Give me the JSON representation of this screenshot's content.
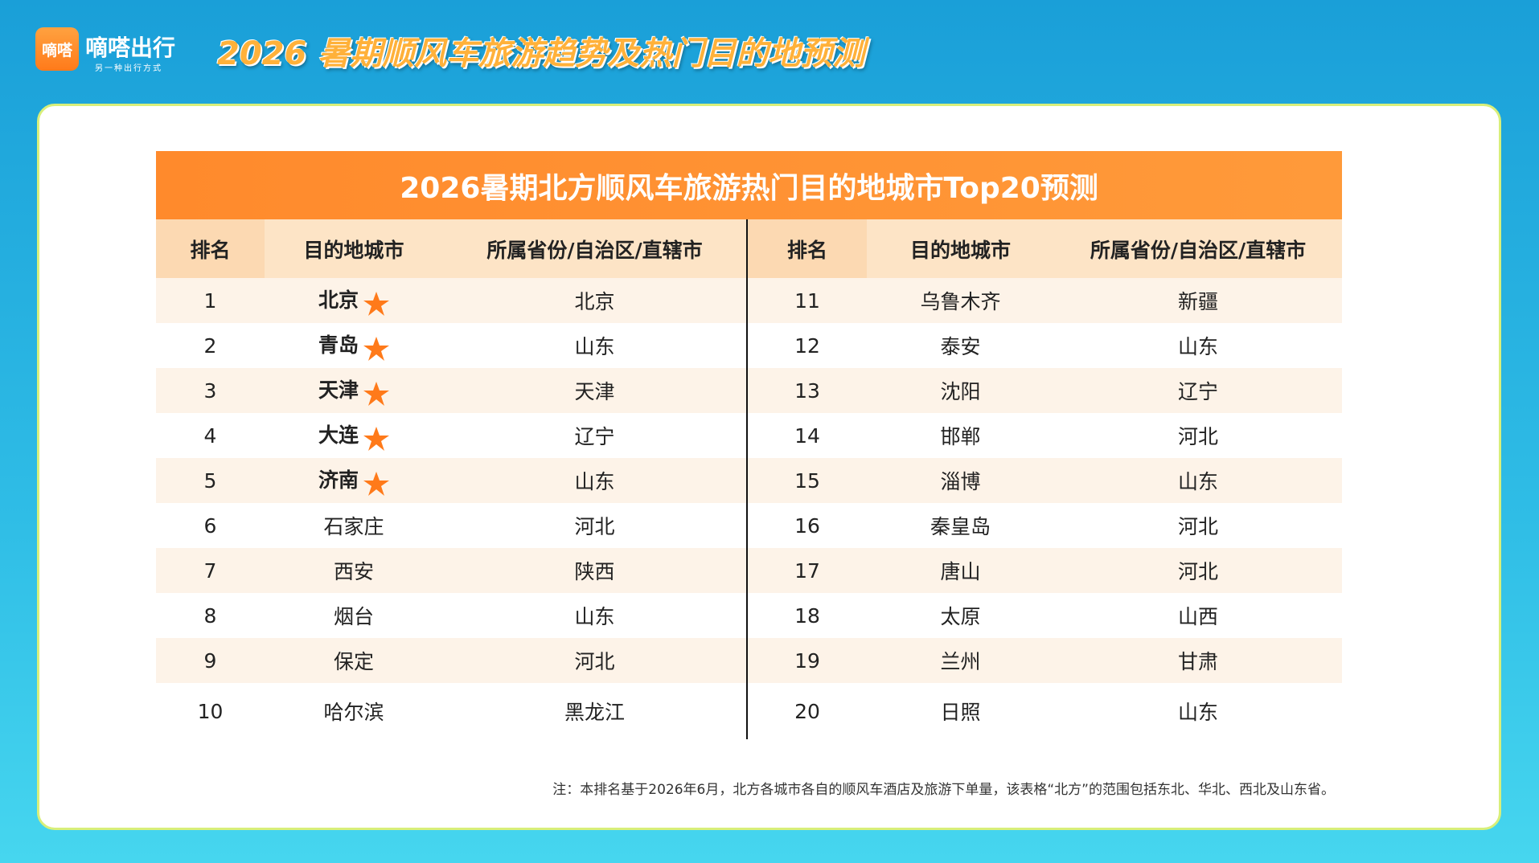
{
  "header": {
    "logo": "嘀嗒",
    "brand": "嘀嗒出行",
    "slogan": "另一种出行方式",
    "title": "2026 暑期顺风车旅游趋势及热门目的地预测"
  },
  "table": {
    "title": "2026暑期北方顺风车旅游热门目的地城市Top20预测",
    "headers": [
      "排名",
      "目的地城市",
      "所属省份/自治区/直辖市",
      "排名",
      "目的地城市",
      "所属省份/自治区/直辖市"
    ],
    "rows": [
      [
        1,
        "北京",
        "北京",
        11,
        "乌鲁木齐",
        "新疆"
      ],
      [
        2,
        "青岛",
        "山东",
        12,
        "泰安",
        "山东"
      ],
      [
        3,
        "天津",
        "天津",
        13,
        "沈阳",
        "辽宁"
      ],
      [
        4,
        "大连",
        "辽宁",
        14,
        "邯郸",
        "河北"
      ],
      [
        5,
        "济南",
        "山东",
        15,
        "淄博",
        "山东"
      ],
      [
        6,
        "石家庄",
        "河北",
        16,
        "秦皇岛",
        "河北"
      ],
      [
        7,
        "西安",
        "陕西",
        17,
        "唐山",
        "河北"
      ],
      [
        8,
        "烟台",
        "山东",
        18,
        "太原",
        "山西"
      ],
      [
        9,
        "保定",
        "河北",
        19,
        "兰州",
        "甘肃"
      ],
      [
        10,
        "哈尔滨",
        "黑龙江",
        20,
        "日照",
        "山东"
      ]
    ]
  },
  "note": "注：本排名基于2026年6月，北方各城市各自的顺风车酒店及旅游下单量，该表格“北方”的范围包括东北、华北、西北及山东省。"
}
